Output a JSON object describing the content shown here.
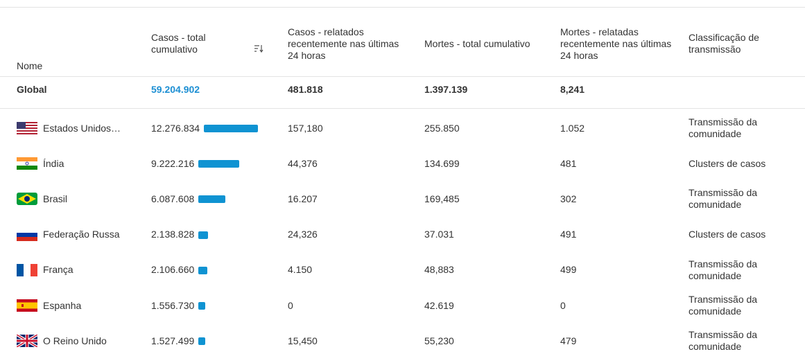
{
  "table": {
    "header": [
      "Nome",
      "Casos - total cumulativo",
      "Casos - relatados recentemente nas últimas 24 horas",
      "Mortes - total cumulativo",
      "Mortes - relatadas recentemente nas últimas 24 horas",
      "Classificação de transmissão"
    ],
    "global": [
      "Global",
      "59.204.902",
      "481.818",
      "1.397.139",
      "8,241",
      ""
    ],
    "rows": [
      [
        "Estados Unidos…",
        "12.276.834",
        "157,180",
        "255.850",
        "1.052",
        "Transmissão da comunidade"
      ],
      [
        "Índia",
        "9.222.216",
        "44,376",
        "134.699",
        "481",
        "Clusters de casos"
      ],
      [
        "Brasil",
        "6.087.608",
        "16.207",
        "169,485",
        "302",
        "Transmissão da comunidade"
      ],
      [
        "Federação Russa",
        "2.138.828",
        "24,326",
        "37.031",
        "491",
        "Clusters de casos"
      ],
      [
        "França",
        "2.106.660",
        "4.150",
        "48,883",
        "499",
        "Transmissão da comunidade"
      ],
      [
        "Espanha",
        "1.556.730",
        "0",
        "42.619",
        "0",
        "Transmissão da comunidade"
      ],
      [
        "O Reino Unido",
        "1.527.499",
        "15,450",
        "55,230",
        "479",
        "Transmissão da comunidade"
      ]
    ]
  }
}
